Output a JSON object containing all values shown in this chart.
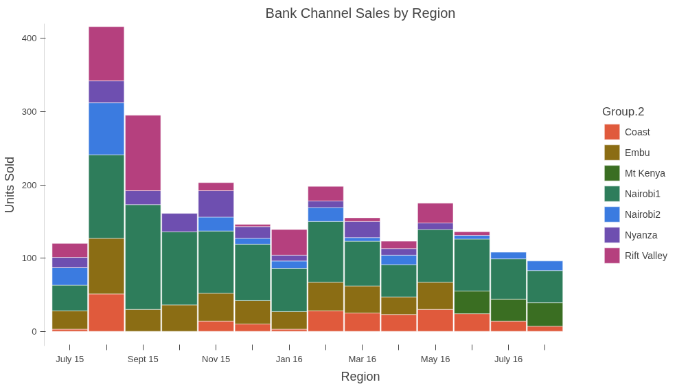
{
  "chart_data": {
    "type": "bar",
    "title": "Bank Channel Sales by Region",
    "xlabel": "Region",
    "ylabel": "Units Sold",
    "legend_title": "Group.2",
    "categories": [
      "July 15",
      null,
      "Sept 15",
      null,
      "Nov 15",
      null,
      "Jan 16",
      null,
      "Mar 16",
      null,
      "May 16",
      null,
      "July 16",
      null
    ],
    "stacked": true,
    "ylim": [
      -20,
      420
    ],
    "yticks": [
      0,
      100,
      200,
      300,
      400
    ],
    "grid": false,
    "legend": "right",
    "series": [
      {
        "name": "Coast",
        "color": "#e05a3c",
        "values": [
          3,
          51,
          0,
          0,
          14,
          10,
          3,
          28,
          25,
          23,
          30,
          24,
          14,
          7
        ]
      },
      {
        "name": "Embu",
        "color": "#8b6d14",
        "values": [
          25,
          76,
          30,
          36,
          38,
          32,
          24,
          39,
          37,
          24,
          37,
          0,
          0,
          0
        ]
      },
      {
        "name": "Mt Kenya",
        "color": "#3a6e22",
        "values": [
          0,
          0,
          0,
          0,
          0,
          0,
          0,
          0,
          0,
          0,
          0,
          31,
          30,
          32
        ]
      },
      {
        "name": "Nairobi1",
        "color": "#2e7d5b",
        "values": [
          35,
          114,
          143,
          100,
          85,
          77,
          59,
          83,
          61,
          44,
          72,
          71,
          55,
          44
        ]
      },
      {
        "name": "Nairobi2",
        "color": "#3b7be0",
        "values": [
          24,
          71,
          0,
          0,
          19,
          8,
          10,
          19,
          5,
          13,
          0,
          5,
          9,
          13
        ]
      },
      {
        "name": "Nyanza",
        "color": "#6e4fb0",
        "values": [
          14,
          30,
          19,
          25,
          36,
          16,
          8,
          9,
          22,
          9,
          9,
          0,
          0,
          0
        ]
      },
      {
        "name": "Rift Valley",
        "color": "#b5407e",
        "values": [
          19,
          74,
          103,
          0,
          11,
          3,
          35,
          20,
          5,
          10,
          27,
          5,
          0,
          0
        ]
      }
    ]
  }
}
